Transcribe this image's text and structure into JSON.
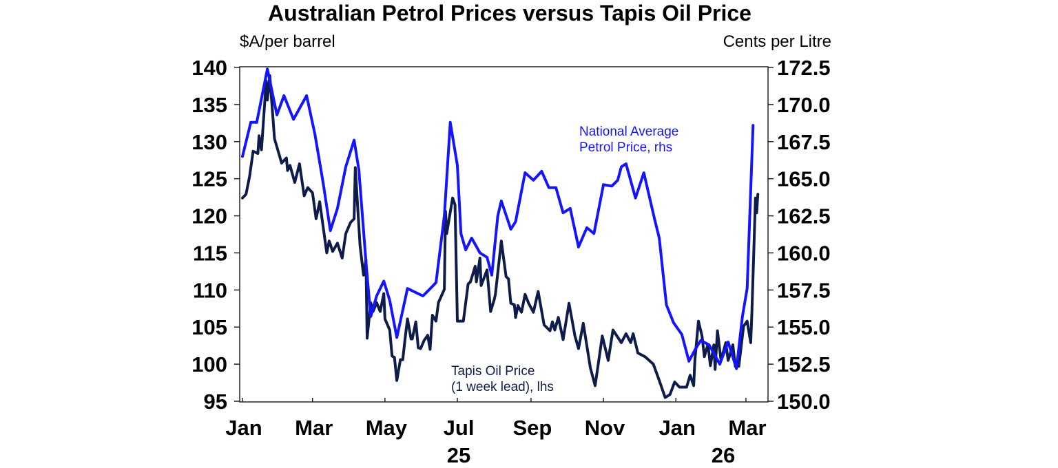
{
  "chart_data": {
    "type": "line",
    "title": "Australian Petrol Prices versus Tapis Oil Price",
    "ylabel_left": "$A/per barrel",
    "ylabel_right": "Cents per Litre",
    "ylim_left": [
      95,
      140
    ],
    "ylim_right": [
      150,
      172.5
    ],
    "yticks_left": [
      "140",
      "135",
      "130",
      "125",
      "120",
      "115",
      "110",
      "105",
      "100",
      "95"
    ],
    "yticks_right": [
      "172.5",
      "170.0",
      "167.5",
      "165.0",
      "162.5",
      "160.0",
      "157.5",
      "155.0",
      "152.5",
      "150.0"
    ],
    "xticks": [
      {
        "date": "2025-01-01",
        "label": "Jan"
      },
      {
        "date": "2025-03-01",
        "label": "Mar"
      },
      {
        "date": "2025-05-01",
        "label": "May"
      },
      {
        "date": "2025-07-01",
        "label": "Jul"
      },
      {
        "date": "2025-09-01",
        "label": "Sep"
      },
      {
        "date": "2025-11-01",
        "label": "Nov"
      },
      {
        "date": "2026-01-01",
        "label": "Jan"
      },
      {
        "date": "2026-03-01",
        "label": "Mar"
      }
    ],
    "year_labels": [
      "25",
      "26"
    ],
    "xlim": [
      "2025-01-01",
      "2026-03-13"
    ],
    "grid": false,
    "series": [
      {
        "name": "National Average Petrol Price, rhs",
        "name_lines": [
          "National Average",
          "Petrol Price, rhs"
        ],
        "axis": "right",
        "color": "#1414ff",
        "dates": [
          "2025-01-01",
          "2025-01-08",
          "2025-01-13",
          "2025-01-22",
          "2025-01-30",
          "2025-02-05",
          "2025-02-13",
          "2025-02-24",
          "2025-03-03",
          "2025-03-10",
          "2025-03-16",
          "2025-03-22",
          "2025-03-29",
          "2025-04-05",
          "2025-04-09",
          "2025-04-15",
          "2025-04-19",
          "2025-04-24",
          "2025-04-30",
          "2025-05-05",
          "2025-05-11",
          "2025-05-20",
          "2025-06-02",
          "2025-06-07",
          "2025-06-13",
          "2025-06-20",
          "2025-06-25",
          "2025-07-01",
          "2025-07-04",
          "2025-07-08",
          "2025-07-13",
          "2025-07-20",
          "2025-07-26",
          "2025-07-30",
          "2025-08-04",
          "2025-08-07",
          "2025-08-15",
          "2025-08-19",
          "2025-08-27",
          "2025-09-03",
          "2025-09-10",
          "2025-09-16",
          "2025-09-22",
          "2025-09-28",
          "2025-10-04",
          "2025-10-11",
          "2025-10-18",
          "2025-10-24",
          "2025-11-01",
          "2025-11-08",
          "2025-11-13",
          "2025-11-16",
          "2025-11-20",
          "2025-11-28",
          "2025-12-05",
          "2025-12-14",
          "2025-12-18",
          "2025-12-24",
          "2025-12-30",
          "2026-01-06",
          "2026-01-12",
          "2026-01-18",
          "2026-01-22",
          "2026-01-29",
          "2026-02-07",
          "2026-02-14",
          "2026-02-21",
          "2026-02-26",
          "2026-03-02",
          "2026-03-07"
        ],
        "values": [
          166.5,
          168.8,
          168.8,
          172.4,
          169.3,
          170.6,
          169.0,
          170.6,
          168.0,
          164.7,
          161.5,
          163.0,
          165.8,
          167.6,
          165.6,
          159.4,
          155.7,
          157.1,
          158.1,
          156.8,
          154.3,
          157.6,
          157.1,
          157.5,
          158.0,
          162.5,
          168.8,
          165.9,
          161.3,
          160.2,
          161.0,
          160.0,
          159.7,
          158.5,
          162.5,
          163.5,
          161.6,
          162.1,
          165.4,
          164.9,
          165.5,
          164.4,
          164.4,
          162.7,
          163.0,
          160.4,
          161.7,
          161.3,
          164.6,
          164.5,
          164.9,
          165.8,
          166.0,
          163.7,
          165.4,
          162.3,
          161.0,
          156.5,
          155.3,
          154.5,
          152.7,
          153.6,
          154.1,
          153.8,
          152.5,
          154.0,
          152.2,
          155.7,
          157.6,
          168.6
        ]
      },
      {
        "name": "Tapis Oil Price (1 week lead), lhs",
        "name_lines": [
          "Tapis Oil Price",
          "(1 week lead), lhs"
        ],
        "axis": "left",
        "color": "#0e1c4a",
        "dates": [
          "2025-01-01",
          "2025-01-04",
          "2025-01-07",
          "2025-01-10",
          "2025-01-14",
          "2025-01-15",
          "2025-01-17",
          "2025-01-21",
          "2025-01-22",
          "2025-01-24",
          "2025-01-28",
          "2025-02-03",
          "2025-02-07",
          "2025-02-08",
          "2025-02-10",
          "2025-02-14",
          "2025-02-18",
          "2025-02-22",
          "2025-02-25",
          "2025-03-01",
          "2025-03-04",
          "2025-03-07",
          "2025-03-13",
          "2025-03-15",
          "2025-03-18",
          "2025-03-22",
          "2025-03-26",
          "2025-03-29",
          "2025-04-02",
          "2025-04-05",
          "2025-04-06",
          "2025-04-10",
          "2025-04-13",
          "2025-04-15",
          "2025-04-16",
          "2025-04-19",
          "2025-04-21",
          "2025-04-24",
          "2025-04-27",
          "2025-04-30",
          "2025-05-01",
          "2025-05-05",
          "2025-05-07",
          "2025-05-09",
          "2025-05-11",
          "2025-05-14",
          "2025-05-16",
          "2025-05-18",
          "2025-05-20",
          "2025-05-23",
          "2025-05-24",
          "2025-05-27",
          "2025-05-29",
          "2025-05-31",
          "2025-06-03",
          "2025-06-06",
          "2025-06-08",
          "2025-06-10",
          "2025-06-13",
          "2025-06-15",
          "2025-06-20",
          "2025-06-21",
          "2025-06-22",
          "2025-06-27",
          "2025-06-29",
          "2025-07-01",
          "2025-07-04",
          "2025-07-06",
          "2025-07-10",
          "2025-07-12",
          "2025-07-16",
          "2025-07-17",
          "2025-07-20",
          "2025-07-21",
          "2025-07-26",
          "2025-07-29",
          "2025-08-01",
          "2025-08-02",
          "2025-08-07",
          "2025-08-11",
          "2025-08-13",
          "2025-08-15",
          "2025-08-18",
          "2025-08-19",
          "2025-08-21",
          "2025-08-24",
          "2025-08-27",
          "2025-08-30",
          "2025-09-03",
          "2025-09-07",
          "2025-09-12",
          "2025-09-17",
          "2025-09-19",
          "2025-09-21",
          "2025-09-24",
          "2025-09-28",
          "2025-10-03",
          "2025-10-08",
          "2025-10-11",
          "2025-10-15",
          "2025-10-21",
          "2025-10-25",
          "2025-10-31",
          "2025-11-05",
          "2025-11-09",
          "2025-11-16",
          "2025-11-20",
          "2025-11-24",
          "2025-11-26",
          "2025-11-30",
          "2025-12-06",
          "2025-12-13",
          "2025-12-18",
          "2025-12-23",
          "2025-12-27",
          "2025-12-31",
          "2026-01-04",
          "2026-01-10",
          "2026-01-13",
          "2026-01-16",
          "2026-01-17",
          "2026-01-20",
          "2026-01-23",
          "2026-01-25",
          "2026-01-28",
          "2026-01-30",
          "2026-02-02",
          "2026-02-03",
          "2026-02-05",
          "2026-02-08",
          "2026-02-12",
          "2026-02-14",
          "2026-02-18",
          "2026-02-20",
          "2026-02-23",
          "2026-02-27",
          "2026-03-02",
          "2026-03-05",
          "2026-03-06",
          "2026-03-09",
          "2026-03-10",
          "2026-03-11"
        ],
        "values": [
          122.4,
          122.9,
          125.3,
          128.7,
          128.4,
          130.8,
          128.9,
          138.2,
          135.6,
          138.9,
          130.4,
          127.1,
          127.8,
          126.1,
          126.8,
          124.5,
          127.0,
          122.7,
          123.8,
          123.1,
          119.6,
          121.9,
          115.0,
          116.6,
          115.2,
          116.3,
          114.3,
          117.6,
          119.1,
          119.6,
          126.5,
          116.0,
          112.0,
          114.1,
          103.5,
          108.3,
          107.1,
          108.3,
          107.1,
          109.5,
          106.1,
          104.6,
          101.1,
          100.9,
          97.8,
          100.6,
          100.6,
          103.5,
          106.1,
          103.4,
          103.4,
          105.7,
          102.2,
          102.1,
          103.2,
          103.9,
          102.0,
          106.6,
          105.8,
          108.3,
          110.1,
          120.6,
          117.6,
          122.4,
          121.5,
          105.8,
          105.8,
          105.8,
          110.8,
          111.1,
          113.2,
          111.1,
          114.3,
          110.6,
          112.7,
          107.1,
          108.7,
          109.4,
          116.6,
          111.8,
          111.5,
          108.2,
          108.0,
          106.3,
          107.9,
          107.0,
          109.4,
          108.2,
          107.0,
          109.8,
          105.3,
          104.5,
          105.7,
          104.6,
          106.3,
          103.3,
          108.2,
          103.8,
          102.1,
          105.5,
          99.5,
          97.1,
          103.8,
          100.5,
          104.6,
          102.9,
          104.1,
          102.9,
          104.1,
          101.5,
          101.0,
          100.0,
          97.8,
          95.5,
          95.9,
          97.6,
          96.9,
          96.9,
          98.5,
          97.1,
          100.5,
          105.8,
          103.8,
          101.0,
          102.7,
          99.8,
          102.6,
          99.3,
          104.5,
          100.5,
          102.9,
          100.5,
          102.6,
          99.7,
          99.7,
          105.1,
          105.8,
          102.9,
          107.0,
          122.4,
          120.4,
          122.9
        ]
      }
    ]
  }
}
